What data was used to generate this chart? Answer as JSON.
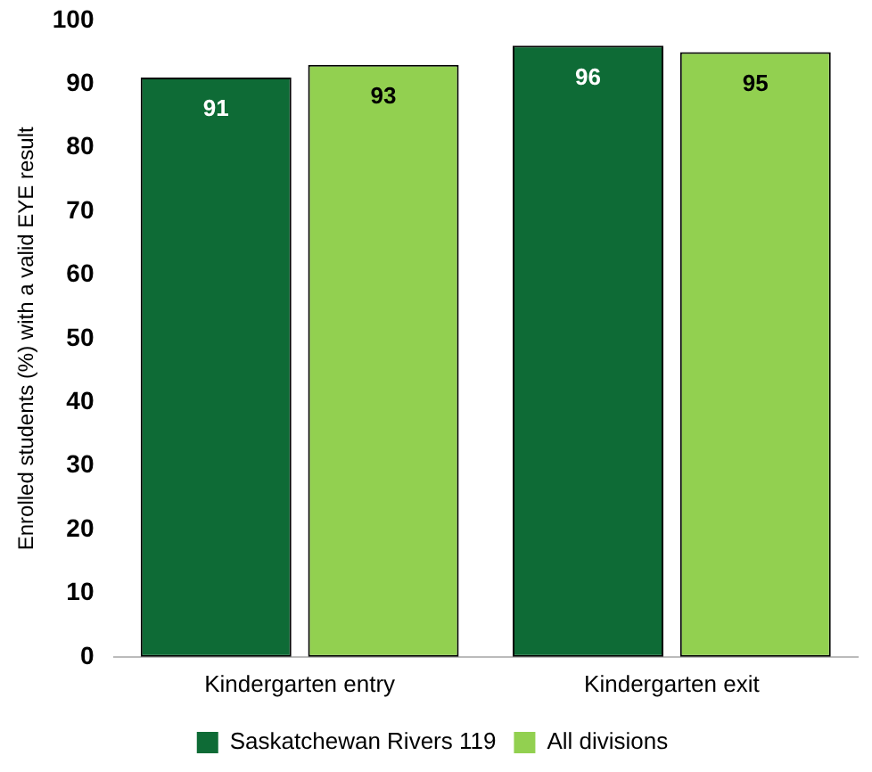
{
  "chart_data": {
    "type": "bar",
    "ylabel": "Enrolled students (%) with a valid EYE result",
    "categories": [
      "Kindergarten entry",
      "Kindergarten exit"
    ],
    "series": [
      {
        "name": "Saskatchewan Rivers 119",
        "color": "#0e6b36",
        "values": [
          91,
          96
        ]
      },
      {
        "name": "All divisions",
        "color": "#92d050",
        "values": [
          93,
          95
        ]
      }
    ],
    "ylim": [
      0,
      100
    ],
    "yticks": [
      0,
      10,
      20,
      30,
      40,
      50,
      60,
      70,
      80,
      90,
      100
    ],
    "grid": false,
    "legend": "bottom",
    "data_labels": true
  }
}
